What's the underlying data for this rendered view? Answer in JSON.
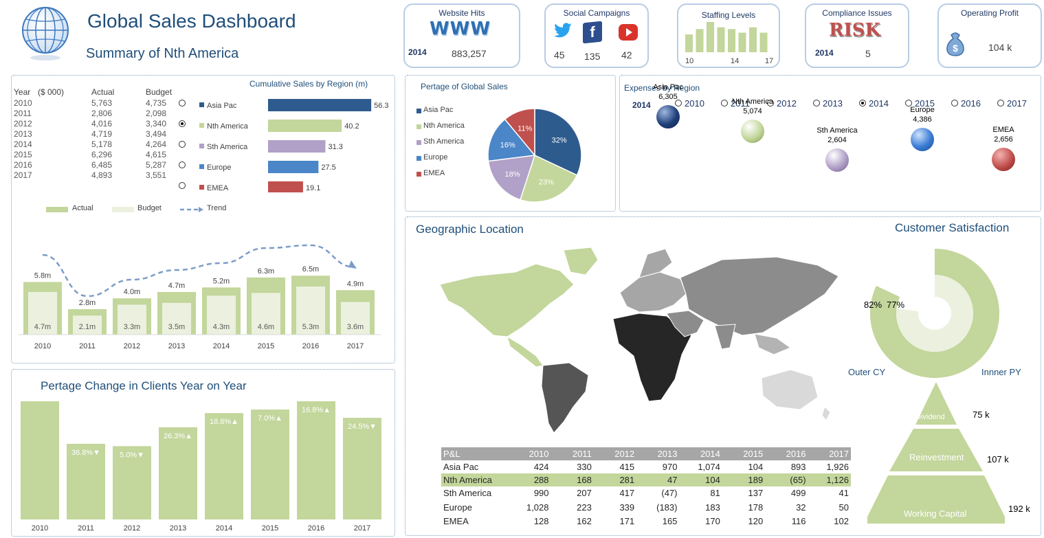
{
  "header": {
    "title": "Global Sales Dashboard",
    "subtitle": "Summary of Nth America"
  },
  "kpis": {
    "website_hits": {
      "title": "Website Hits",
      "logo": "WWW",
      "year": "2014",
      "value": "883,257"
    },
    "social": {
      "title": "Social Campaigns",
      "twitter": "45",
      "facebook": "135",
      "youtube": "42"
    },
    "staffing": {
      "title": "Staffing Levels",
      "low": "10",
      "mid": "14",
      "high": "17",
      "bars": [
        10,
        13,
        17,
        14,
        13,
        11,
        14,
        11
      ]
    },
    "compliance": {
      "title": "Compliance Issues",
      "logo": "RISK",
      "year": "2014",
      "value": "5"
    },
    "profit": {
      "title": "Operating Profit",
      "value": "104 k"
    }
  },
  "sales_table": {
    "headers": [
      "Year",
      "($ 000)",
      "Actual",
      "Budget"
    ],
    "rows": [
      {
        "year": "2010",
        "actual": "5,763",
        "budget": "4,735"
      },
      {
        "year": "2011",
        "actual": "2,806",
        "budget": "2,098"
      },
      {
        "year": "2012",
        "actual": "4,016",
        "budget": "3,340"
      },
      {
        "year": "2013",
        "actual": "4,719",
        "budget": "3,494"
      },
      {
        "year": "2014",
        "actual": "5,178",
        "budget": "4,264"
      },
      {
        "year": "2015",
        "actual": "6,296",
        "budget": "4,615"
      },
      {
        "year": "2016",
        "actual": "6,485",
        "budget": "5,287"
      },
      {
        "year": "2017",
        "actual": "4,893",
        "budget": "3,551"
      }
    ]
  },
  "region_select": {
    "selected": 1
  },
  "legend": {
    "actual": "Actual",
    "budget": "Budget",
    "trend": "Trend"
  },
  "pie_legend": [
    "Asia Pac",
    "Nth America",
    "Sth America",
    "Europe",
    "EMEA"
  ],
  "expense_options": [
    "2010",
    "2011",
    "2012",
    "2013",
    "2014",
    "2015",
    "2016",
    "2017"
  ],
  "expense_selected": 4,
  "expense_year": "2014",
  "geo_title": "Geographic Location",
  "cust_sat": {
    "title": "Customer Satisfaction",
    "outer_value": "82%",
    "inner_value": "77%",
    "outer_label": "Outer CY",
    "inner_label": "Innner  PY"
  },
  "pyramid": [
    {
      "label": "Dividend",
      "value": "75 k"
    },
    {
      "label": "Reinvestment",
      "value": "107 k"
    },
    {
      "label": "Working Capital",
      "value": "192 k"
    }
  ],
  "pl_table": {
    "headers": [
      "P&L",
      "2010",
      "2011",
      "2012",
      "2013",
      "2014",
      "2015",
      "2016",
      "2017"
    ],
    "rows": [
      [
        "Asia Pac",
        "424",
        "330",
        "415",
        "970",
        "1,074",
        "104",
        "893",
        "1,926"
      ],
      [
        "Nth America",
        "288",
        "168",
        "281",
        "47",
        "104",
        "189",
        "(65)",
        "1,126"
      ],
      [
        "Sth America",
        "990",
        "207",
        "417",
        "(47)",
        "81",
        "137",
        "499",
        "41"
      ],
      [
        "Europe",
        "1,028",
        "223",
        "339",
        "(183)",
        "183",
        "178",
        "32",
        "50"
      ],
      [
        "EMEA",
        "128",
        "162",
        "171",
        "165",
        "170",
        "120",
        "116",
        "102"
      ]
    ]
  },
  "colors": {
    "asia": "#2e5b8e",
    "nth": "#c3d69b",
    "sth": "#b1a0c7",
    "europe": "#4a86c8",
    "emea": "#c0504d",
    "bar": "#c3d69b",
    "bar_light": "#ebf1de"
  },
  "chart_data": [
    {
      "type": "bar",
      "title": "Cumulative Sales by Region (m)",
      "categories": [
        "Asia Pac",
        "Nth America",
        "Sth America",
        "Europe",
        "EMEA"
      ],
      "values": [
        56.3,
        40.2,
        31.3,
        27.5,
        19.1
      ]
    },
    {
      "type": "bar",
      "title": "",
      "categories": [
        "2010",
        "2011",
        "2012",
        "2013",
        "2014",
        "2015",
        "2016",
        "2017"
      ],
      "series": [
        {
          "name": "Actual",
          "values": [
            5.8,
            2.8,
            4.0,
            4.7,
            5.2,
            6.3,
            6.5,
            4.9
          ],
          "labels": [
            "5.8m",
            "2.8m",
            "4.0m",
            "4.7m",
            "5.2m",
            "6.3m",
            "6.5m",
            "4.9m"
          ]
        },
        {
          "name": "Budget",
          "values": [
            4.7,
            2.1,
            3.3,
            3.5,
            4.3,
            4.6,
            5.3,
            3.6
          ],
          "labels": [
            "4.7m",
            "2.1m",
            "3.3m",
            "3.5m",
            "4.3m",
            "4.6m",
            "5.3m",
            "3.6m"
          ]
        }
      ],
      "trend": "Trend"
    },
    {
      "type": "pie",
      "title": "Pertage of Global Sales",
      "categories": [
        "Asia Pac",
        "Nth America",
        "Sth America",
        "Europe",
        "EMEA"
      ],
      "values": [
        32,
        23,
        18,
        16,
        11
      ],
      "labels": [
        "32%",
        "23%",
        "18%",
        "16%",
        "11%"
      ]
    },
    {
      "type": "scatter",
      "title": "Expenses by Region",
      "categories": [
        "Asia Pac",
        "Nth America",
        "Sth America",
        "Europe",
        "EMEA"
      ],
      "values": [
        6305,
        5074,
        2604,
        4386,
        2656
      ],
      "labels": [
        "6,305",
        "5,074",
        "2,604",
        "4,386",
        "2,656"
      ]
    },
    {
      "type": "bar",
      "title": "Pertage Change in Clients Year on Year",
      "categories": [
        "2010",
        "2011",
        "2012",
        "2013",
        "2014",
        "2015",
        "2016",
        "2017"
      ],
      "values": [
        100,
        64,
        62,
        78,
        90,
        93,
        100,
        86
      ],
      "labels": [
        "",
        "36.8%▼",
        "5.0%▼",
        "26.3%▲",
        "18.8%▲",
        "7.0%▲",
        "16.8%▲",
        "24.5%▼"
      ]
    },
    {
      "type": "pie",
      "title": "Customer Satisfaction",
      "series": [
        {
          "name": "Outer CY",
          "values": [
            82
          ]
        },
        {
          "name": "Innner  PY",
          "values": [
            77
          ]
        }
      ]
    }
  ]
}
